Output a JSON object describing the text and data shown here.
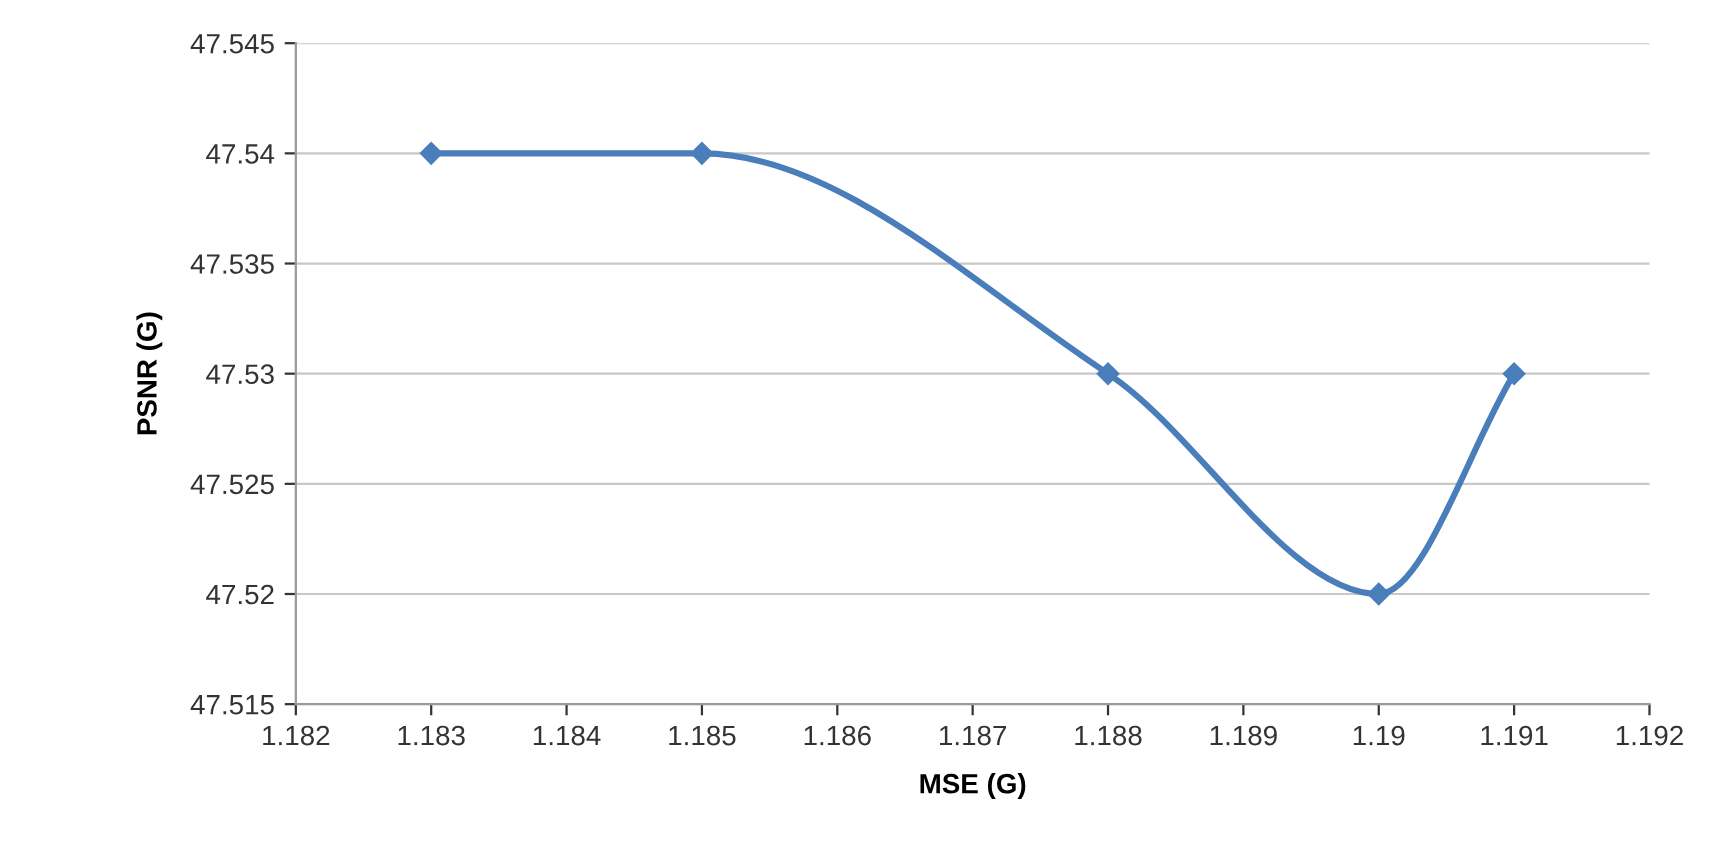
{
  "chart_data": {
    "type": "line",
    "xlabel": "MSE (G)",
    "ylabel": "PSNR (G)",
    "x": [
      1.183,
      1.185,
      1.188,
      1.19,
      1.191
    ],
    "series": [
      {
        "color": "#4a7ebb",
        "values": [
          47.54,
          47.54,
          47.53,
          47.52,
          47.53
        ]
      }
    ],
    "xlim": [
      1.182,
      1.192
    ],
    "xticks": [
      1.182,
      1.183,
      1.184,
      1.185,
      1.186,
      1.187,
      1.188,
      1.189,
      1.19,
      1.191,
      1.192
    ],
    "ylim": [
      47.515,
      47.545
    ],
    "yticks": [
      47.515,
      47.52,
      47.525,
      47.53,
      47.535,
      47.54,
      47.545
    ],
    "grid": "y",
    "marker": "diamond",
    "line_style": "solid"
  }
}
